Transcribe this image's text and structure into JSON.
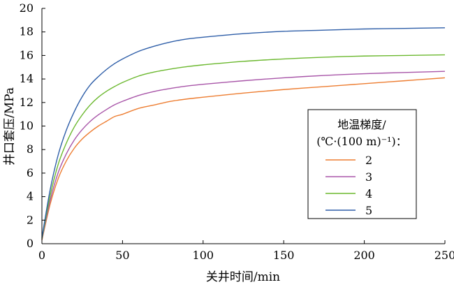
{
  "chart_data": {
    "type": "line",
    "xlabel": "关井时间/min",
    "ylabel": "井口套压/MPa",
    "xlim": [
      0,
      250
    ],
    "ylim": [
      0,
      20
    ],
    "xticks": [
      0,
      50,
      100,
      150,
      200,
      250
    ],
    "yticks": [
      0,
      2,
      4,
      6,
      8,
      10,
      12,
      14,
      16,
      18,
      20
    ],
    "grid": false,
    "legend": {
      "title_line1": "地温梯度/",
      "title_line2": "(℃·(100 m)⁻¹)：",
      "placement": "lower-right"
    },
    "x": [
      0,
      5,
      10,
      15,
      20,
      25,
      30,
      35,
      40,
      45,
      50,
      60,
      70,
      80,
      90,
      100,
      125,
      150,
      175,
      200,
      225,
      250
    ],
    "series": [
      {
        "name": "2",
        "color": "#ed7d31",
        "values": [
          0.3,
          3.3,
          5.5,
          7.0,
          8.1,
          8.9,
          9.5,
          10.0,
          10.4,
          10.8,
          11.0,
          11.5,
          11.8,
          12.1,
          12.3,
          12.45,
          12.8,
          13.1,
          13.35,
          13.6,
          13.85,
          14.1
        ]
      },
      {
        "name": "3",
        "color": "#a855a8",
        "values": [
          0.35,
          3.6,
          6.0,
          7.6,
          8.8,
          9.7,
          10.4,
          10.95,
          11.4,
          11.8,
          12.1,
          12.6,
          12.95,
          13.2,
          13.4,
          13.55,
          13.85,
          14.1,
          14.3,
          14.45,
          14.55,
          14.65
        ]
      },
      {
        "name": "4",
        "color": "#6bb82e",
        "values": [
          0.4,
          4.0,
          6.7,
          8.5,
          9.9,
          10.95,
          11.8,
          12.45,
          12.95,
          13.35,
          13.7,
          14.25,
          14.6,
          14.85,
          15.05,
          15.2,
          15.5,
          15.7,
          15.85,
          15.95,
          16.0,
          16.05
        ]
      },
      {
        "name": "5",
        "color": "#2e5ea8",
        "values": [
          0.5,
          4.5,
          7.5,
          9.6,
          11.2,
          12.5,
          13.5,
          14.2,
          14.8,
          15.3,
          15.7,
          16.35,
          16.8,
          17.15,
          17.4,
          17.55,
          17.85,
          18.05,
          18.15,
          18.25,
          18.3,
          18.35
        ]
      }
    ]
  }
}
